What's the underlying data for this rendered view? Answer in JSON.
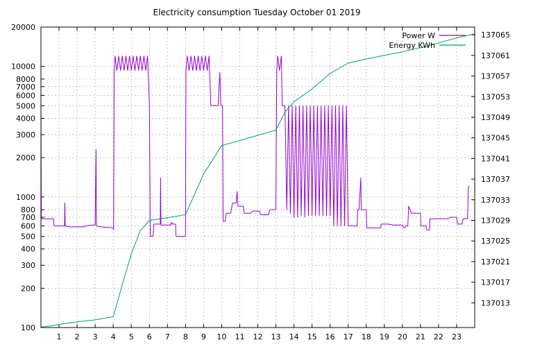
{
  "chart_data": {
    "type": "line",
    "title": "Electricity consumption Tuesday October 01 2019",
    "xlabel": "",
    "ylabel": "",
    "xlim": [
      0,
      24
    ],
    "x_ticks": [
      1,
      2,
      3,
      4,
      5,
      6,
      7,
      8,
      9,
      10,
      11,
      12,
      13,
      14,
      15,
      16,
      17,
      18,
      19,
      20,
      21,
      22,
      23
    ],
    "y_left": {
      "scale": "log",
      "lim": [
        100,
        20000
      ],
      "ticks": [
        100,
        200,
        300,
        400,
        500,
        600,
        700,
        800,
        1000,
        2000,
        3000,
        4000,
        5000,
        6000,
        7000,
        8000,
        10000,
        20000
      ]
    },
    "y_right": {
      "scale": "linear",
      "lim": [
        137008.2,
        137066.5
      ],
      "ticks": [
        137013,
        137017,
        137021,
        137025,
        137029,
        137033,
        137037,
        137041,
        137045,
        137049,
        137053,
        137057,
        137061,
        137065
      ]
    },
    "grid": true,
    "legend_position": "top-right",
    "series": [
      {
        "name": "Power W",
        "axis": "left",
        "color": "#9400d3",
        "points": [
          [
            0.0,
            5000
          ],
          [
            0.02,
            700
          ],
          [
            0.05,
            680
          ],
          [
            0.7,
            680
          ],
          [
            0.72,
            600
          ],
          [
            1.3,
            600
          ],
          [
            1.32,
            900
          ],
          [
            1.34,
            600
          ],
          [
            1.6,
            590
          ],
          [
            2.4,
            590
          ],
          [
            2.42,
            600
          ],
          [
            2.9,
            610
          ],
          [
            3.0,
            610
          ],
          [
            3.05,
            2300
          ],
          [
            3.07,
            600
          ],
          [
            3.3,
            590
          ],
          [
            4.0,
            580
          ],
          [
            4.02,
            560
          ],
          [
            4.05,
            9300
          ],
          [
            4.1,
            12000
          ],
          [
            4.2,
            9300
          ],
          [
            4.3,
            12000
          ],
          [
            4.4,
            9300
          ],
          [
            4.5,
            12000
          ],
          [
            4.6,
            9300
          ],
          [
            4.7,
            12000
          ],
          [
            4.8,
            9300
          ],
          [
            4.9,
            12000
          ],
          [
            5.0,
            9300
          ],
          [
            5.1,
            12000
          ],
          [
            5.2,
            9300
          ],
          [
            5.3,
            12000
          ],
          [
            5.4,
            9300
          ],
          [
            5.5,
            12000
          ],
          [
            5.6,
            9300
          ],
          [
            5.7,
            12000
          ],
          [
            5.8,
            9300
          ],
          [
            5.9,
            12000
          ],
          [
            6.0,
            5000
          ],
          [
            6.05,
            500
          ],
          [
            6.2,
            500
          ],
          [
            6.25,
            620
          ],
          [
            6.6,
            620
          ],
          [
            6.62,
            1400
          ],
          [
            6.64,
            610
          ],
          [
            7.2,
            610
          ],
          [
            7.22,
            640
          ],
          [
            7.3,
            620
          ],
          [
            7.45,
            620
          ],
          [
            7.47,
            500
          ],
          [
            8.0,
            500
          ],
          [
            8.02,
            9300
          ],
          [
            8.1,
            12000
          ],
          [
            8.2,
            9300
          ],
          [
            8.3,
            12000
          ],
          [
            8.4,
            9300
          ],
          [
            8.5,
            12000
          ],
          [
            8.6,
            9300
          ],
          [
            8.7,
            12000
          ],
          [
            8.8,
            9300
          ],
          [
            8.9,
            12000
          ],
          [
            9.0,
            9300
          ],
          [
            9.1,
            12000
          ],
          [
            9.2,
            9300
          ],
          [
            9.3,
            12000
          ],
          [
            9.4,
            5000
          ],
          [
            9.6,
            5000
          ],
          [
            9.8,
            5000
          ],
          [
            9.9,
            9000
          ],
          [
            9.95,
            5000
          ],
          [
            10.05,
            5000
          ],
          [
            10.08,
            650
          ],
          [
            10.2,
            650
          ],
          [
            10.25,
            750
          ],
          [
            10.5,
            750
          ],
          [
            10.6,
            900
          ],
          [
            10.8,
            900
          ],
          [
            10.85,
            1100
          ],
          [
            10.9,
            850
          ],
          [
            11.2,
            850
          ],
          [
            11.25,
            750
          ],
          [
            11.6,
            750
          ],
          [
            11.7,
            780
          ],
          [
            12.1,
            780
          ],
          [
            12.15,
            730
          ],
          [
            12.6,
            730
          ],
          [
            12.65,
            800
          ],
          [
            13.0,
            800
          ],
          [
            13.05,
            9300
          ],
          [
            13.1,
            12000
          ],
          [
            13.2,
            9300
          ],
          [
            13.3,
            12000
          ],
          [
            13.35,
            5000
          ],
          [
            13.5,
            5000
          ],
          [
            13.6,
            800
          ],
          [
            13.7,
            5000
          ],
          [
            13.8,
            750
          ],
          [
            13.9,
            5000
          ],
          [
            14.0,
            700
          ],
          [
            14.1,
            5000
          ],
          [
            14.2,
            700
          ],
          [
            14.3,
            5000
          ],
          [
            14.4,
            720
          ],
          [
            14.5,
            5000
          ],
          [
            14.6,
            700
          ],
          [
            14.7,
            5000
          ],
          [
            14.8,
            720
          ],
          [
            14.9,
            5000
          ],
          [
            15.0,
            720
          ],
          [
            15.1,
            5000
          ],
          [
            15.2,
            720
          ],
          [
            15.3,
            5000
          ],
          [
            15.4,
            720
          ],
          [
            15.5,
            5000
          ],
          [
            15.6,
            720
          ],
          [
            15.7,
            5000
          ],
          [
            15.8,
            720
          ],
          [
            15.9,
            5000
          ],
          [
            16.0,
            720
          ],
          [
            16.1,
            5000
          ],
          [
            16.2,
            600
          ],
          [
            16.3,
            5000
          ],
          [
            16.4,
            600
          ],
          [
            16.5,
            5000
          ],
          [
            16.6,
            600
          ],
          [
            16.7,
            5000
          ],
          [
            16.8,
            600
          ],
          [
            16.9,
            5000
          ],
          [
            17.0,
            600
          ],
          [
            17.5,
            600
          ],
          [
            17.52,
            800
          ],
          [
            17.6,
            800
          ],
          [
            17.7,
            1400
          ],
          [
            17.72,
            800
          ],
          [
            18.0,
            800
          ],
          [
            18.02,
            580
          ],
          [
            18.8,
            580
          ],
          [
            18.82,
            620
          ],
          [
            19.2,
            620
          ],
          [
            19.5,
            610
          ],
          [
            20.0,
            610
          ],
          [
            20.1,
            580
          ],
          [
            20.2,
            600
          ],
          [
            20.3,
            600
          ],
          [
            20.35,
            850
          ],
          [
            20.5,
            750
          ],
          [
            21.0,
            750
          ],
          [
            21.02,
            600
          ],
          [
            21.3,
            600
          ],
          [
            21.35,
            560
          ],
          [
            21.5,
            560
          ],
          [
            21.52,
            680
          ],
          [
            22.0,
            680
          ],
          [
            22.5,
            680
          ],
          [
            22.7,
            700
          ],
          [
            22.8,
            700
          ],
          [
            23.0,
            700
          ],
          [
            23.05,
            620
          ],
          [
            23.3,
            620
          ],
          [
            23.35,
            680
          ],
          [
            23.6,
            680
          ],
          [
            23.65,
            1200
          ],
          [
            23.7,
            1200
          ]
        ]
      },
      {
        "name": "Energy KWh",
        "axis": "right",
        "color": "#009e73",
        "points": [
          [
            0,
            137008.3
          ],
          [
            0.5,
            137008.5
          ],
          [
            1,
            137008.8
          ],
          [
            2,
            137009.3
          ],
          [
            3,
            137009.7
          ],
          [
            4,
            137010.3
          ],
          [
            4.5,
            137016.5
          ],
          [
            5,
            137022.5
          ],
          [
            5.5,
            137027.0
          ],
          [
            6,
            137029.0
          ],
          [
            7,
            137029.5
          ],
          [
            8,
            137030.1
          ],
          [
            9,
            137038.0
          ],
          [
            10,
            137043.5
          ],
          [
            11,
            137044.5
          ],
          [
            12,
            137045.5
          ],
          [
            13,
            137046.5
          ],
          [
            13.5,
            137050.0
          ],
          [
            14,
            137052.0
          ],
          [
            15,
            137054.5
          ],
          [
            16,
            137057.5
          ],
          [
            17,
            137059.5
          ],
          [
            18,
            137060.3
          ],
          [
            19,
            137061.0
          ],
          [
            20,
            137061.7
          ],
          [
            21,
            137062.5
          ],
          [
            22,
            137063.4
          ],
          [
            23,
            137064.4
          ],
          [
            24,
            137065.2
          ]
        ]
      }
    ]
  }
}
